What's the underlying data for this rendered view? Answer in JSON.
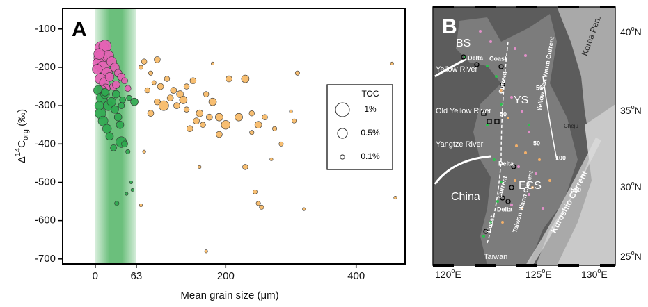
{
  "chart_data": {
    "type": "scatter",
    "panel_label": "A",
    "xlabel": "Mean grain size (μm)",
    "ylabel": [
      "Δ",
      "14",
      "C",
      "org",
      " (‰)"
    ],
    "xlim": [
      -50,
      475
    ],
    "ylim": [
      -713,
      -46
    ],
    "xticks": [
      0,
      63,
      200,
      400
    ],
    "yticks": [
      -100,
      -200,
      -300,
      -400,
      -500,
      -600,
      -700
    ],
    "shaded_range": [
      0,
      63
    ],
    "shaded_color": "#3aaa50",
    "size_legend": {
      "title": "TOC",
      "sizes": [
        {
          "value": 1,
          "label": "1%"
        },
        {
          "value": 0.5,
          "label": "0.5%"
        },
        {
          "value": 0.1,
          "label": "0.1%"
        }
      ]
    },
    "series": [
      {
        "color": "#e462b4",
        "x": [
          10,
          15,
          8,
          20,
          5,
          12,
          25,
          18,
          30,
          3,
          8,
          14,
          22,
          35,
          40,
          6,
          28,
          45,
          16,
          10,
          32,
          50
        ],
        "values": [
          -150,
          -145,
          -175,
          -170,
          -190,
          -200,
          -185,
          -215,
          -200,
          -205,
          -230,
          -240,
          -225,
          -215,
          -225,
          -165,
          -250,
          -235,
          -255,
          -260,
          -245,
          -255
        ],
        "sizes": [
          1.0,
          0.8,
          0.9,
          0.6,
          0.7,
          0.8,
          0.5,
          0.6,
          0.4,
          0.5,
          0.6,
          0.5,
          0.4,
          0.3,
          0.3,
          0.6,
          0.3,
          0.2,
          0.4,
          0.5,
          0.3,
          0.2
        ]
      },
      {
        "color": "#2fa84f",
        "x": [
          5,
          10,
          15,
          20,
          8,
          25,
          30,
          12,
          18,
          35,
          40,
          22,
          6,
          28,
          45,
          50,
          38,
          15,
          32,
          42,
          55,
          48,
          33,
          60,
          52,
          40,
          57
        ],
        "values": [
          -260,
          -280,
          -270,
          -300,
          -320,
          -290,
          -310,
          -340,
          -360,
          -330,
          -395,
          -380,
          -300,
          -410,
          -400,
          -420,
          -350,
          -265,
          -270,
          -285,
          -500,
          -530,
          -555,
          -290,
          -280,
          -300,
          -520
        ],
        "sizes": [
          0.5,
          0.6,
          0.4,
          0.5,
          0.6,
          0.4,
          0.3,
          0.5,
          0.4,
          0.3,
          0.6,
          0.3,
          0.4,
          0.2,
          0.2,
          0.1,
          0.3,
          0.3,
          0.3,
          0.2,
          0.05,
          0.05,
          0.1,
          0.3,
          0.15,
          0.2,
          0.05
        ]
      },
      {
        "color": "#f6b865",
        "x": [
          70,
          75,
          85,
          95,
          80,
          90,
          100,
          110,
          120,
          130,
          140,
          150,
          115,
          125,
          135,
          95,
          105,
          170,
          180,
          160,
          175,
          190,
          200,
          220,
          240,
          250,
          260,
          230,
          205,
          310,
          155,
          145,
          165,
          230,
          285,
          245,
          250,
          255,
          320,
          160,
          170,
          270,
          300,
          305,
          180,
          75,
          70,
          460,
          455,
          240,
          275,
          85,
          140,
          190
        ],
        "values": [
          -200,
          -185,
          -215,
          -180,
          -260,
          -240,
          -250,
          -230,
          -260,
          -270,
          -250,
          -235,
          -280,
          -300,
          -285,
          -290,
          -300,
          -270,
          -290,
          -320,
          -330,
          -330,
          -350,
          -330,
          -320,
          -350,
          -330,
          -230,
          -230,
          -215,
          -340,
          -360,
          -350,
          -460,
          -400,
          -525,
          -555,
          -565,
          -570,
          -460,
          -680,
          -440,
          -315,
          -340,
          -190,
          -420,
          -560,
          -540,
          -190,
          -370,
          -360,
          -320,
          -310,
          -375
        ],
        "sizes": [
          0.1,
          0.15,
          0.1,
          0.2,
          0.15,
          0.1,
          0.2,
          0.15,
          0.2,
          0.25,
          0.15,
          0.2,
          0.2,
          0.2,
          0.3,
          0.2,
          0.5,
          0.15,
          0.3,
          0.25,
          0.2,
          0.3,
          0.4,
          0.3,
          0.15,
          0.25,
          0.15,
          0.3,
          0.2,
          0.1,
          0.2,
          0.2,
          0.15,
          0.15,
          0.1,
          0.1,
          0.1,
          0.1,
          0.05,
          0.05,
          0.05,
          0.05,
          0.05,
          0.1,
          0.05,
          0.05,
          0.05,
          0.05,
          0.05,
          0.1,
          0.1,
          0.2,
          0.15,
          0.2
        ]
      }
    ]
  },
  "map": {
    "panel_label": "B",
    "labels": {
      "bs": "BS",
      "ys": "YS",
      "ecs": "ECS",
      "china": "China",
      "korea": "Korea Pen.",
      "yellow_river": "Yellow River",
      "old_yellow_river": "Old Yellow River",
      "yangtze": "Yangtze River",
      "cheju": "Cheju",
      "taiwan": "Taiwan",
      "kuroshio": "Kuroshio Current",
      "yswc": "Yellow Sea Warm Current",
      "twc": "Taiwan Warm Current",
      "delta1": "Delta",
      "coast1": "Coast",
      "current1": "Current",
      "delta2": "Delta",
      "delta3": "Delta",
      "current2": "Current",
      "coast2": "Coast",
      "d50a": "50",
      "d50b": "50",
      "d50c": "50",
      "d100": "100",
      "d500": "500"
    },
    "lat_labels": [
      [
        "40",
        "o",
        "N"
      ],
      [
        "35",
        "o",
        "N"
      ],
      [
        "30",
        "o",
        "N"
      ],
      [
        "25",
        "o",
        "N"
      ]
    ],
    "lon_labels": [
      [
        "120",
        "o",
        "E"
      ],
      [
        "125",
        "o",
        "E"
      ],
      [
        "130",
        "o",
        "E"
      ]
    ]
  }
}
